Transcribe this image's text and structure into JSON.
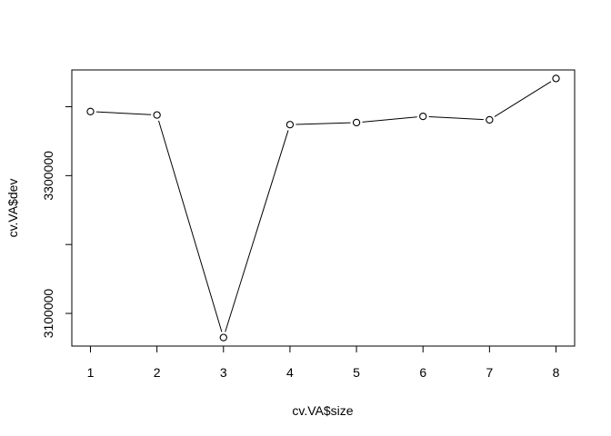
{
  "chart_data": {
    "type": "line",
    "title": "",
    "xlabel": "cv.VA$size",
    "ylabel": "cv.VA$dev",
    "x": [
      1,
      2,
      3,
      4,
      5,
      6,
      7,
      8
    ],
    "series": [
      {
        "values": [
          3393000,
          3388000,
          3065000,
          3374000,
          3377000,
          3386000,
          3381000,
          3441000
        ]
      }
    ],
    "xticks": [
      "1",
      "2",
      "3",
      "4",
      "5",
      "6",
      "7",
      "8"
    ],
    "yticks": [
      "3100000",
      "3300000"
    ],
    "ytick_values": [
      3100000,
      3200000,
      3300000,
      3400000
    ],
    "xlim": [
      0.72,
      8.28
    ],
    "ylim": [
      3052600,
      3453400
    ],
    "marker": "open-circle",
    "line_color": "#000000",
    "grid": false,
    "legend": "none"
  }
}
